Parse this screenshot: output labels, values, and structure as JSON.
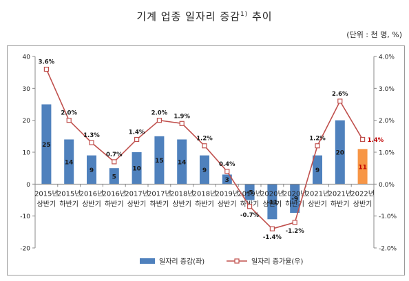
{
  "title": {
    "main": "기계 업종 일자리 증감",
    "sup": "1)",
    "tail": " 추이"
  },
  "unit": "(단위 : 천 명, %)",
  "colors": {
    "bar": "#4f81bd",
    "bar_highlight": "#f79646",
    "line": "#c0504d",
    "marker_fill": "#ffffff",
    "highlight_label": "#c00000"
  },
  "chart_data": {
    "type": "bar",
    "categories": [
      [
        "2015년",
        "상반기"
      ],
      [
        "2015년",
        "하반기"
      ],
      [
        "2016년",
        "상반기"
      ],
      [
        "2016년",
        "하반기"
      ],
      [
        "2017년",
        "상반기"
      ],
      [
        "2017년",
        "하반기"
      ],
      [
        "2018년",
        "상반기"
      ],
      [
        "2018년",
        "하반기"
      ],
      [
        "2019년",
        "상반기"
      ],
      [
        "2019년",
        "하반기"
      ],
      [
        "2020년",
        "상반기"
      ],
      [
        "2020년",
        "하반기"
      ],
      [
        "2021년",
        "상반기"
      ],
      [
        "2021년",
        "하반기"
      ],
      [
        "2022년",
        "상반기"
      ]
    ],
    "series": [
      {
        "name": "일자리 증감(좌)",
        "type": "bar",
        "axis": "left",
        "values": [
          25,
          14,
          9,
          5,
          10,
          15,
          14,
          9,
          3,
          -5,
          -11,
          -9,
          9,
          20,
          11
        ],
        "labels": [
          "25",
          "14",
          "9",
          "5",
          "10",
          "15",
          "14",
          "9",
          "3",
          "-5",
          "-11",
          "-9",
          "9",
          "20",
          "11"
        ]
      },
      {
        "name": "일자리 증가율(우)",
        "type": "line",
        "axis": "right",
        "values": [
          3.6,
          2.0,
          1.3,
          0.7,
          1.4,
          2.0,
          1.9,
          1.2,
          0.4,
          -0.7,
          -1.4,
          -1.2,
          1.2,
          2.6,
          1.4
        ],
        "labels": [
          "3.6%",
          "2.0%",
          "1.3%",
          "0.7%",
          "1.4%",
          "2.0%",
          "1.9%",
          "1.2%",
          "0.4%",
          "-0.7%",
          "-1.4%",
          "-1.2%",
          "1.2%",
          "2.6%",
          "1.4%"
        ]
      }
    ],
    "highlight_index": 14,
    "y_left": {
      "min": -20,
      "max": 40,
      "ticks": [
        -20,
        -10,
        0,
        10,
        20,
        30,
        40
      ],
      "tick_labels": [
        "-20",
        "-10",
        "0",
        "10",
        "20",
        "30",
        "40"
      ]
    },
    "y_right": {
      "min": -2,
      "max": 4,
      "ticks": [
        -2,
        -1,
        0,
        1,
        2,
        3,
        4
      ],
      "tick_labels": [
        "-2.0%",
        "-1.0%",
        "0.0%",
        "1.0%",
        "2.0%",
        "3.0%",
        "4.0%"
      ]
    },
    "grid": false,
    "legend_position": "bottom"
  }
}
